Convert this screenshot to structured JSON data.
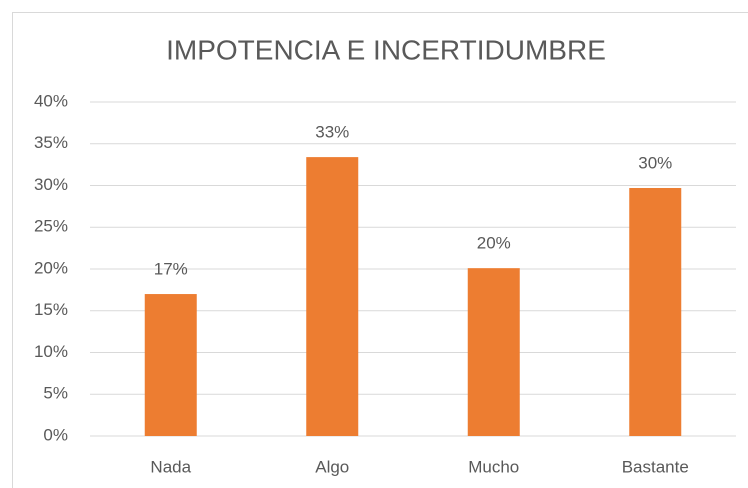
{
  "chart_data": {
    "type": "bar",
    "title": "IMPOTENCIA E INCERTIDUMBRE",
    "categories": [
      "Nada",
      "Algo",
      "Mucho",
      "Bastante"
    ],
    "values": [
      17,
      33.4,
      20.1,
      29.7
    ],
    "value_labels": [
      "17%",
      "33%",
      "20%",
      "30%"
    ],
    "color": "#ed7d31",
    "ylim": [
      0,
      40
    ],
    "yticks": [
      {
        "value": 0,
        "label": "0%"
      },
      {
        "value": 5,
        "label": "5%"
      },
      {
        "value": 10,
        "label": "10%"
      },
      {
        "value": 15,
        "label": "15%"
      },
      {
        "value": 20,
        "label": "20%"
      },
      {
        "value": 25,
        "label": "25%"
      },
      {
        "value": 30,
        "label": "30%"
      },
      {
        "value": 35,
        "label": "35%"
      },
      {
        "value": 40,
        "label": "40%"
      }
    ],
    "grid": true
  }
}
